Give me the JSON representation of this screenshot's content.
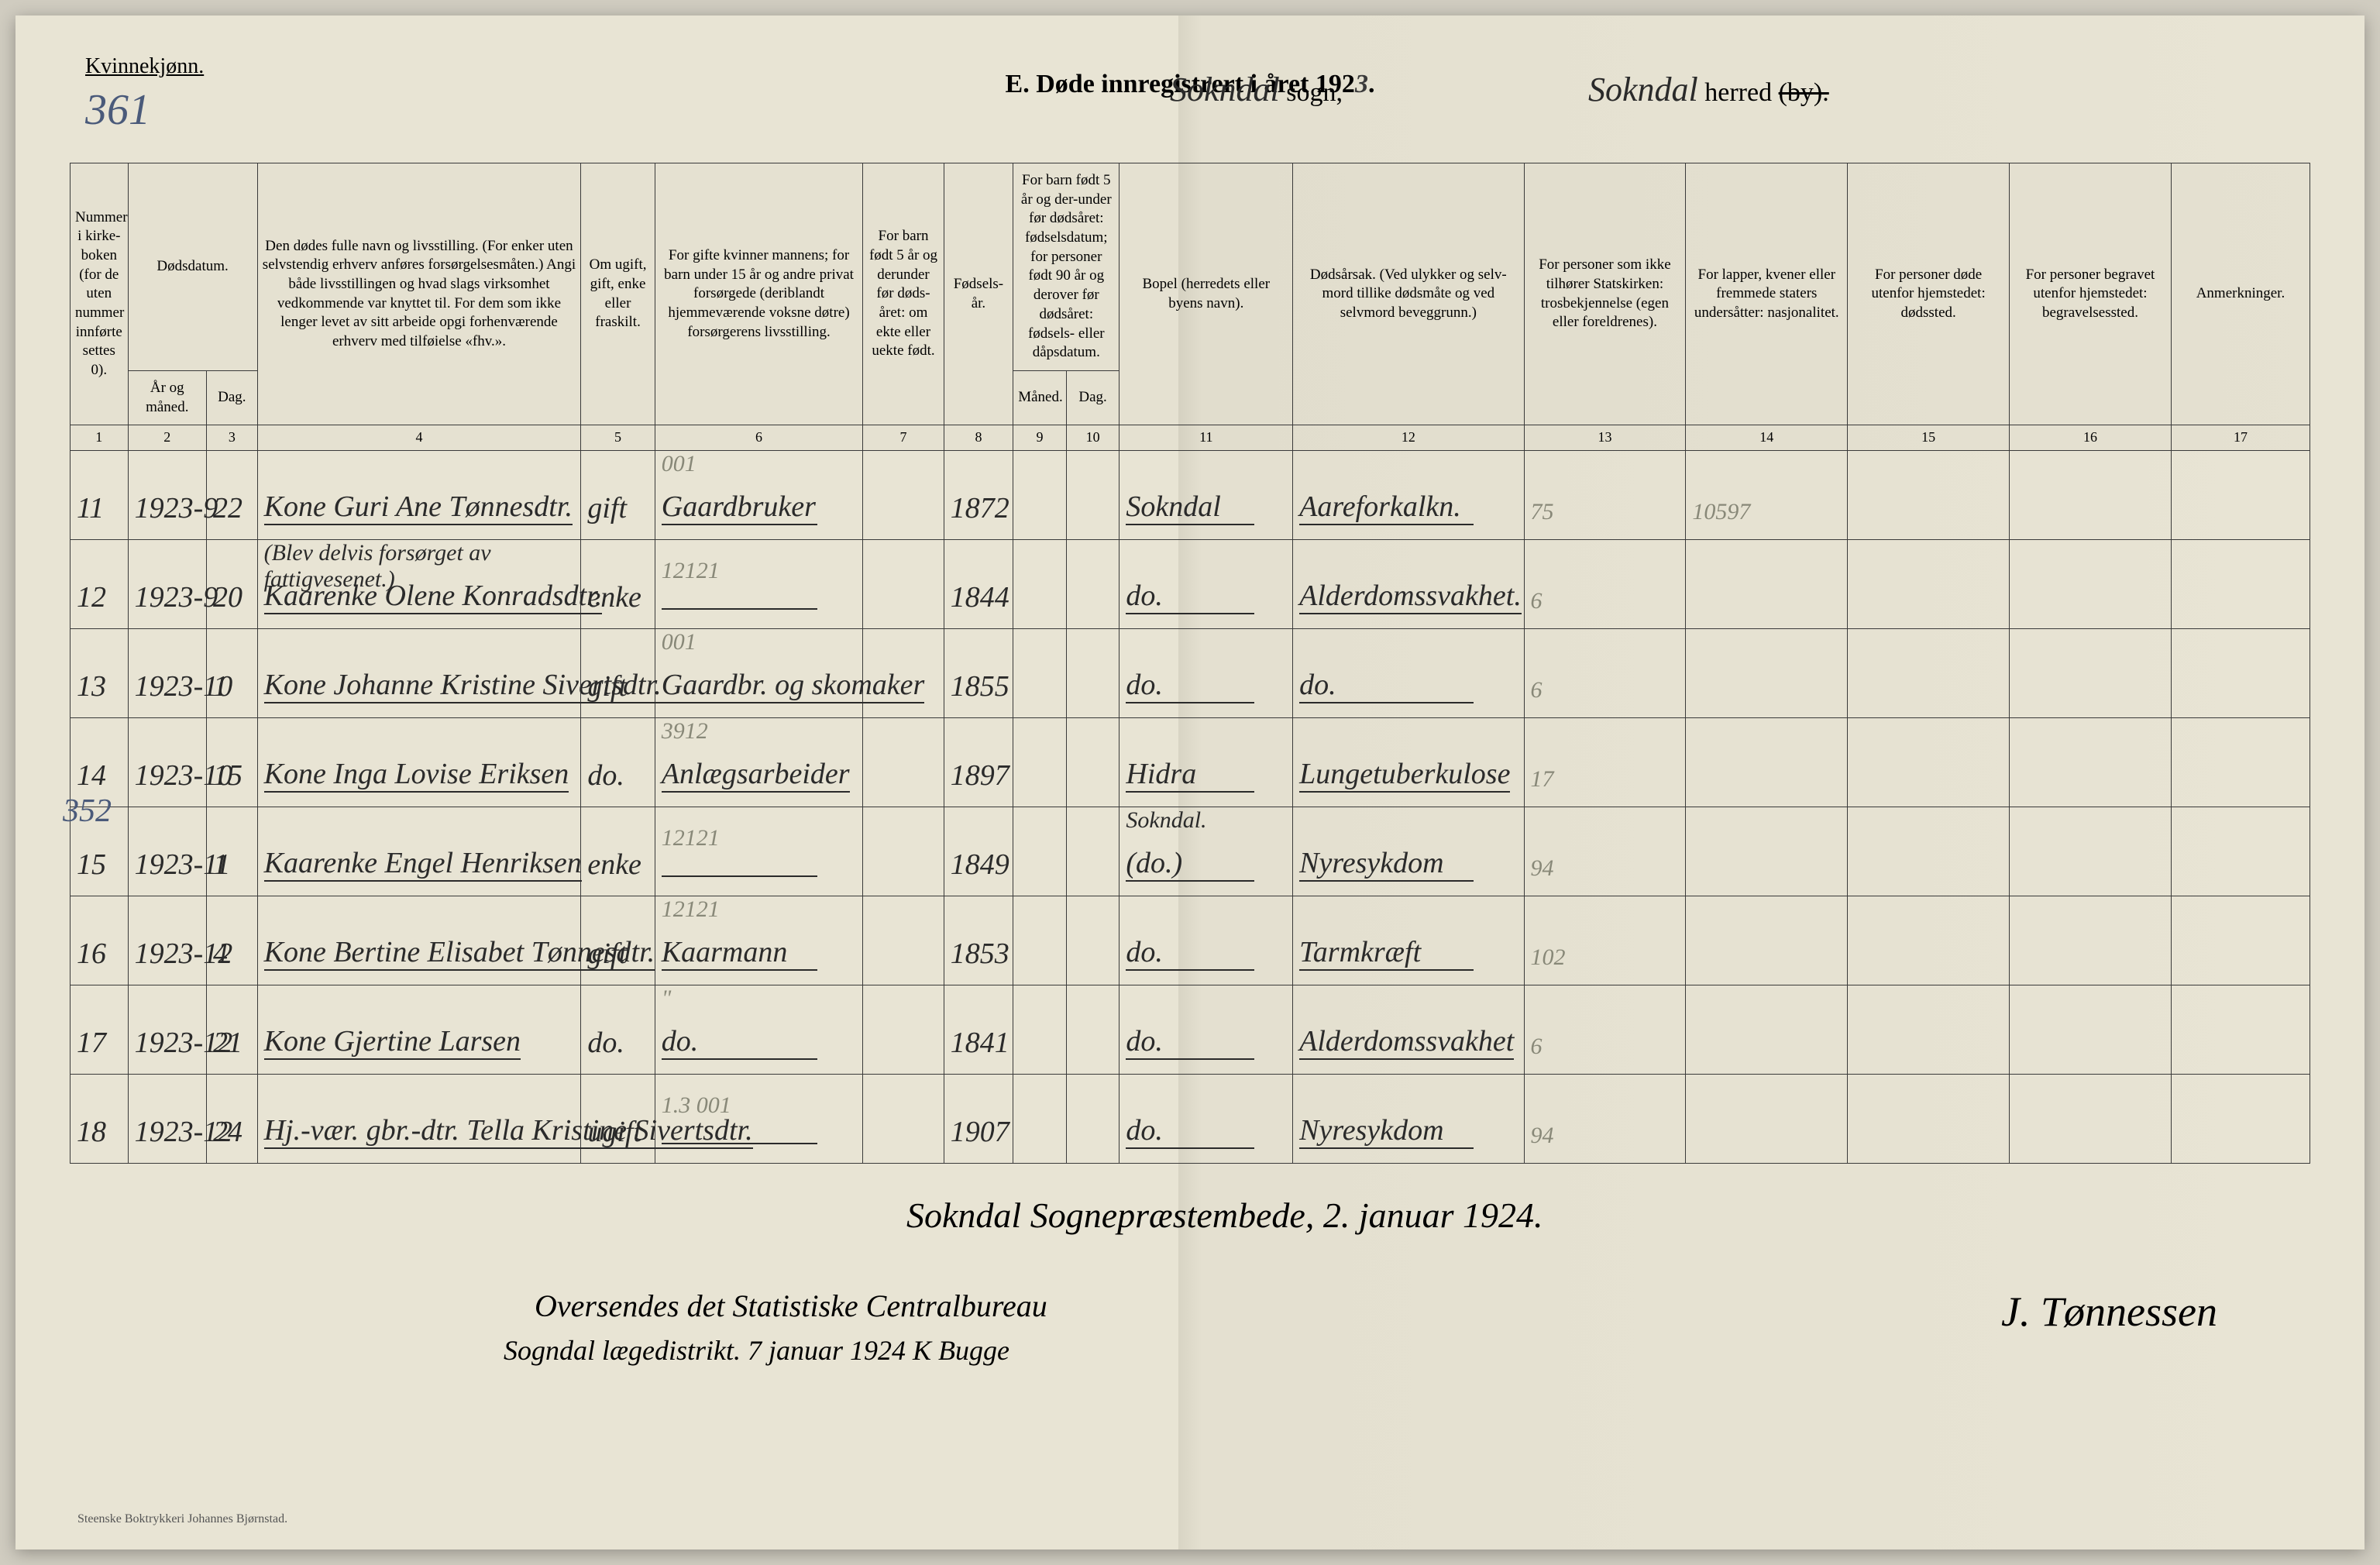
{
  "header": {
    "gender": "Kvinnekjønn.",
    "page_number": "361",
    "title_prefix": "E.  Døde innregistrert i året 192",
    "title_year_digit": "3",
    "title_suffix": ".",
    "sogn_value": "Sokndal",
    "sogn_label": "sogn,",
    "herred_value": "Sokndal",
    "herred_label": "herred",
    "herred_strike": "(by)."
  },
  "margin_number": "352",
  "columns": {
    "c1": "Nummer i kirke-boken (for de uten nummer innførte settes 0).",
    "c2a": "Dødsdatum.",
    "c2b_ar": "År og måned.",
    "c2b_dag": "Dag.",
    "c4": "Den dødes fulle navn og livsstilling. (For enker uten selvstendig erhverv anføres forsørgelsesmåten.) Angi både livsstillingen og hvad slags virksomhet vedkommende var knyttet til. For dem som ikke lenger levet av sitt arbeide opgi forhenværende erhverv med tilføielse «fhv.».",
    "c5": "Om ugift, gift, enke eller fraskilt.",
    "c6": "For gifte kvinner mannens; for barn under 15 år og andre privat forsørgede (deriblandt hjemmeværende voksne døtre) forsørgerens livsstilling.",
    "c7": "For barn født 5 år og derunder før døds-året: om ekte eller uekte født.",
    "c8": "Fødsels-år.",
    "c9_10": "For barn født 5 år og der-under før dødsåret: fødselsdatum; for personer født 90 år og derover før dødsåret: fødsels- eller dåpsdatum.",
    "c9": "Måned.",
    "c10": "Dag.",
    "c11": "Bopel (herredets eller byens navn).",
    "c12": "Dødsårsak. (Ved ulykker og selv-mord tillike dødsmåte og ved selvmord beveggrunn.)",
    "c13": "For personer som ikke tilhører Statskirken: trosbekjennelse (egen eller foreldrenes).",
    "c14": "For lapper, kvener eller fremmede staters undersåtter: nasjonalitet.",
    "c15": "For personer døde utenfor hjemstedet: dødssted.",
    "c16": "For personer begravet utenfor hjemstedet: begravelsessted.",
    "c17": "Anmerkninger."
  },
  "colnums": [
    "1",
    "2",
    "3",
    "4",
    "5",
    "6",
    "7",
    "8",
    "9",
    "10",
    "11",
    "12",
    "13",
    "14",
    "15",
    "16",
    "17"
  ],
  "rows": [
    {
      "num": "11",
      "date_ym": "1923-9",
      "date_d": "22",
      "name": "Kone Guri Ane Tønnesdtr.",
      "status": "gift",
      "pencil_above": "001",
      "occ": "Gaardbruker",
      "birth": "1872",
      "place": "Sokndal",
      "cause": "Aareforkalkn.",
      "col13": "75",
      "col14": "10597"
    },
    {
      "num": "12",
      "date_ym": "1923-9",
      "date_d": "20",
      "name_note": "(Blev delvis forsørget av fattigvesenet.)",
      "name": "Kaarenke Olene Konradsdtr.",
      "status": "enke",
      "pencil_above": "12121",
      "occ": "",
      "birth": "1844",
      "place": "do.",
      "cause": "Alderdomssvakhet.",
      "col13": "6",
      "col14": ""
    },
    {
      "num": "13",
      "date_ym": "1923-10",
      "date_d": "1",
      "name": "Kone Johanne Kristine Sivertsdtr.",
      "status": "gift",
      "pencil_above": "001",
      "occ": "Gaardbr. og skomaker",
      "birth": "1855",
      "place": "do.",
      "cause": "do.",
      "col13": "6",
      "col14": ""
    },
    {
      "num": "14",
      "date_ym": "1923-10",
      "date_d": "15",
      "name": "Kone Inga Lovise Eriksen",
      "status": "do.",
      "pencil_above": "3912",
      "occ": "Anlægsarbeider",
      "birth": "1897",
      "place": "Hidra",
      "cause": "Lungetuberkulose",
      "col13": "17",
      "col14": ""
    },
    {
      "num": "15",
      "date_ym": "1923-11",
      "date_d": "1",
      "name": "Kaarenke Engel Henriksen",
      "status": "enke",
      "pencil_above": "12121",
      "occ": "",
      "birth": "1849",
      "place_note": "Sokndal.",
      "place": "(do.)",
      "cause": "Nyresykdom",
      "col13": "94",
      "col14": ""
    },
    {
      "num": "16",
      "date_ym": "1923-12",
      "date_d": "4",
      "name": "Kone Bertine Elisabet Tønnesdtr.",
      "status": "gift",
      "pencil_above": "12121",
      "occ": "Kaarmann",
      "birth": "1853",
      "place": "do.",
      "cause": "Tarmkræft",
      "col13": "102",
      "col14": ""
    },
    {
      "num": "17",
      "date_ym": "1923-12",
      "date_d": "21",
      "name": "Kone Gjertine Larsen",
      "status": "do.",
      "pencil_above": "\"",
      "occ": "do.",
      "birth": "1841",
      "place": "do.",
      "cause": "Alderdomssvakhet",
      "col13": "6",
      "col14": ""
    },
    {
      "num": "18",
      "date_ym": "1923-12",
      "date_d": "24",
      "name": "Hj.-vær. gbr.-dtr. Tella Kristine Sivertsdtr.",
      "status": "ugift",
      "pencil_above": "1.3     001",
      "occ": "",
      "birth": "1907",
      "place": "do.",
      "cause": "Nyresykdom",
      "col13": "94",
      "col14": ""
    }
  ],
  "footer": {
    "line1": "Sokndal Sognepræstembede, 2. januar 1924.",
    "line2": "Oversendes det Statistiske Centralbureau",
    "line3": "Sogndal lægedistrikt. 7 januar 1924  K Bugge",
    "signature": "J. Tønnessen"
  },
  "printer": "Steenske Boktrykkeri Johannes Bjørnstad.",
  "styling": {
    "page_bg": "#e8e4d4",
    "ink_color": "#2a2a2a",
    "pencil_color": "#888878",
    "blue_ink": "#4a5a7a",
    "border_color": "#3a3a3a",
    "handwriting_font": "Brush Script MT, cursive",
    "print_font": "Georgia, serif",
    "header_fontsize": 34,
    "body_hand_fontsize": 38,
    "colhead_fontsize": 19
  }
}
